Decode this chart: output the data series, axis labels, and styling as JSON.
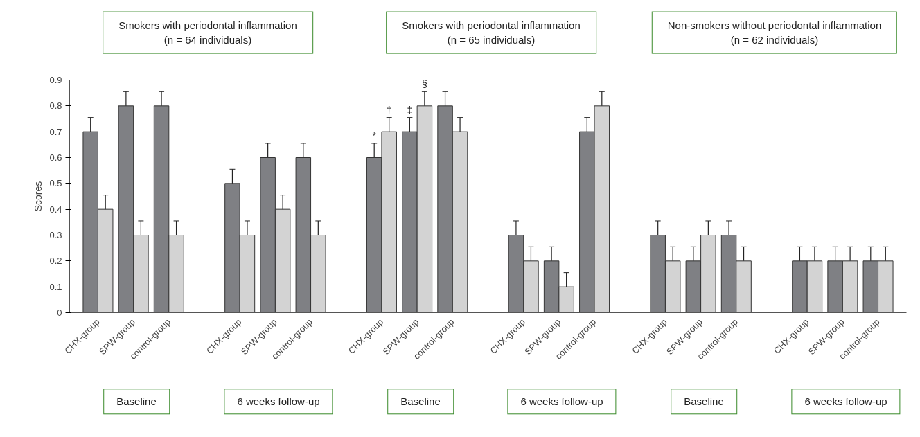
{
  "chart_data": {
    "type": "bar",
    "ylabel": "Scores",
    "categories": [
      "CHX-group",
      "SPW-group",
      "control-group",
      null,
      "CHX-group",
      "SPW-group",
      "control-group",
      null,
      "CHX-group",
      "SPW-group",
      "control-group",
      null,
      "CHX-group",
      "SPW-group",
      "control-group",
      null,
      "CHX-group",
      "SPW-group",
      "control-group",
      null,
      "CHX-group",
      "SPW-group",
      "control-group"
    ],
    "series": [
      {
        "color": "#7f8084",
        "values": [
          0.7,
          0.8,
          0.8,
          null,
          0.5,
          0.6,
          0.6,
          null,
          0.6,
          0.7,
          0.8,
          null,
          0.3,
          0.2,
          0.7,
          null,
          0.3,
          0.2,
          0.3,
          null,
          0.2,
          0.2,
          0.2
        ],
        "errors": [
          0.055,
          0.055,
          0.055,
          null,
          0.055,
          0.055,
          0.055,
          null,
          0.055,
          0.055,
          0.055,
          null,
          0.055,
          0.055,
          0.055,
          null,
          0.055,
          0.055,
          0.055,
          null,
          0.055,
          0.055,
          0.055
        ]
      },
      {
        "color": "#d3d3d3",
        "values": [
          0.4,
          0.3,
          0.3,
          null,
          0.3,
          0.4,
          0.3,
          null,
          0.7,
          0.8,
          0.7,
          null,
          0.2,
          0.1,
          0.8,
          null,
          0.2,
          0.3,
          0.2,
          null,
          0.2,
          0.2,
          0.2
        ],
        "errors": [
          0.055,
          0.055,
          0.055,
          null,
          0.055,
          0.055,
          0.055,
          null,
          0.055,
          0.055,
          0.055,
          null,
          0.055,
          0.055,
          0.055,
          null,
          0.055,
          0.055,
          0.055,
          null,
          0.055,
          0.055,
          0.055
        ]
      }
    ],
    "ylim": [
      0,
      0.9
    ],
    "yticks": [
      0,
      0.1,
      0.2,
      0.3,
      0.4,
      0.5,
      0.6,
      0.7,
      0.8,
      0.9
    ],
    "grid": false,
    "annotations": [
      "Smokers with periodontal inflammation\n(n = 64 individuals)",
      "Smokers with periodontal inflammation\n(n = 65 individuals)",
      "Non-smokers without periodontal inflammation\n(n = 62 individuals)",
      "*",
      "†",
      "‡",
      "§",
      "Baseline",
      "6 weeks follow-up",
      "Baseline",
      "6 weeks follow-up",
      "Baseline",
      "6 weeks follow-up"
    ]
  }
}
